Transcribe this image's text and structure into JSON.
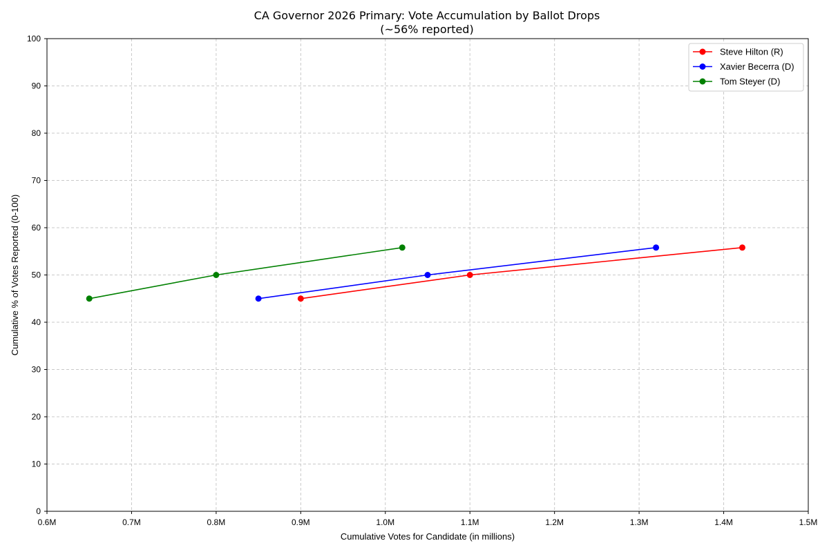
{
  "chart_data": {
    "type": "line",
    "title": "CA Governor 2026 Primary: Vote Accumulation by Ballot Drops",
    "subtitle": "(~56% reported)",
    "xlabel": "Cumulative Votes for Candidate (in millions)",
    "ylabel": "Cumulative % of Votes Reported (0-100)",
    "xlim": [
      0.6,
      1.5
    ],
    "ylim": [
      0,
      100
    ],
    "x_ticks": [
      0.6,
      0.7,
      0.8,
      0.9,
      1.0,
      1.1,
      1.2,
      1.3,
      1.4,
      1.5
    ],
    "x_tick_labels": [
      "0.6M",
      "0.7M",
      "0.8M",
      "0.9M",
      "1.0M",
      "1.1M",
      "1.2M",
      "1.3M",
      "1.4M",
      "1.5M"
    ],
    "y_ticks": [
      0,
      10,
      20,
      30,
      40,
      50,
      60,
      70,
      80,
      90,
      100
    ],
    "y_tick_labels": [
      "0",
      "10",
      "20",
      "30",
      "40",
      "50",
      "60",
      "70",
      "80",
      "90",
      "100"
    ],
    "grid": true,
    "legend_position": "top-right",
    "series": [
      {
        "name": "Steve Hilton (R)",
        "color": "#ff0000",
        "points": [
          {
            "x": 0.9,
            "y": 45
          },
          {
            "x": 1.1,
            "y": 50
          },
          {
            "x": 1.422,
            "y": 55.8
          }
        ]
      },
      {
        "name": "Xavier Becerra (D)",
        "color": "#0000ff",
        "points": [
          {
            "x": 0.85,
            "y": 45
          },
          {
            "x": 1.05,
            "y": 50
          },
          {
            "x": 1.32,
            "y": 55.8
          }
        ]
      },
      {
        "name": "Tom Steyer (D)",
        "color": "#008000",
        "points": [
          {
            "x": 0.65,
            "y": 45
          },
          {
            "x": 0.8,
            "y": 50
          },
          {
            "x": 1.02,
            "y": 55.8
          }
        ]
      }
    ]
  }
}
